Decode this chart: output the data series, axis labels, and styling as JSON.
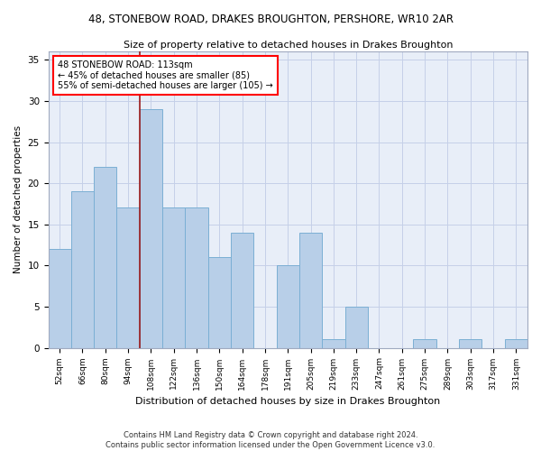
{
  "title": "48, STONEBOW ROAD, DRAKES BROUGHTON, PERSHORE, WR10 2AR",
  "subtitle": "Size of property relative to detached houses in Drakes Broughton",
  "xlabel": "Distribution of detached houses by size in Drakes Broughton",
  "ylabel": "Number of detached properties",
  "categories": [
    "52sqm",
    "66sqm",
    "80sqm",
    "94sqm",
    "108sqm",
    "122sqm",
    "136sqm",
    "150sqm",
    "164sqm",
    "178sqm",
    "191sqm",
    "205sqm",
    "219sqm",
    "233sqm",
    "247sqm",
    "261sqm",
    "275sqm",
    "289sqm",
    "303sqm",
    "317sqm",
    "331sqm"
  ],
  "values": [
    12,
    19,
    22,
    17,
    29,
    17,
    17,
    11,
    14,
    0,
    10,
    14,
    1,
    5,
    0,
    0,
    1,
    0,
    1,
    0,
    1
  ],
  "bar_color": "#b8cfe8",
  "bar_edge_color": "#7bafd4",
  "marker_bin_index": 4,
  "marker_color": "#9b1a1a",
  "annotation_line1": "48 STONEBOW ROAD: 113sqm",
  "annotation_line2": "← 45% of detached houses are smaller (85)",
  "annotation_line3": "55% of semi-detached houses are larger (105) →",
  "ylim": [
    0,
    36
  ],
  "yticks": [
    0,
    5,
    10,
    15,
    20,
    25,
    30,
    35
  ],
  "background_color": "#e8eef8",
  "grid_color": "#c5d0e8",
  "footer_line1": "Contains HM Land Registry data © Crown copyright and database right 2024.",
  "footer_line2": "Contains public sector information licensed under the Open Government Licence v3.0."
}
